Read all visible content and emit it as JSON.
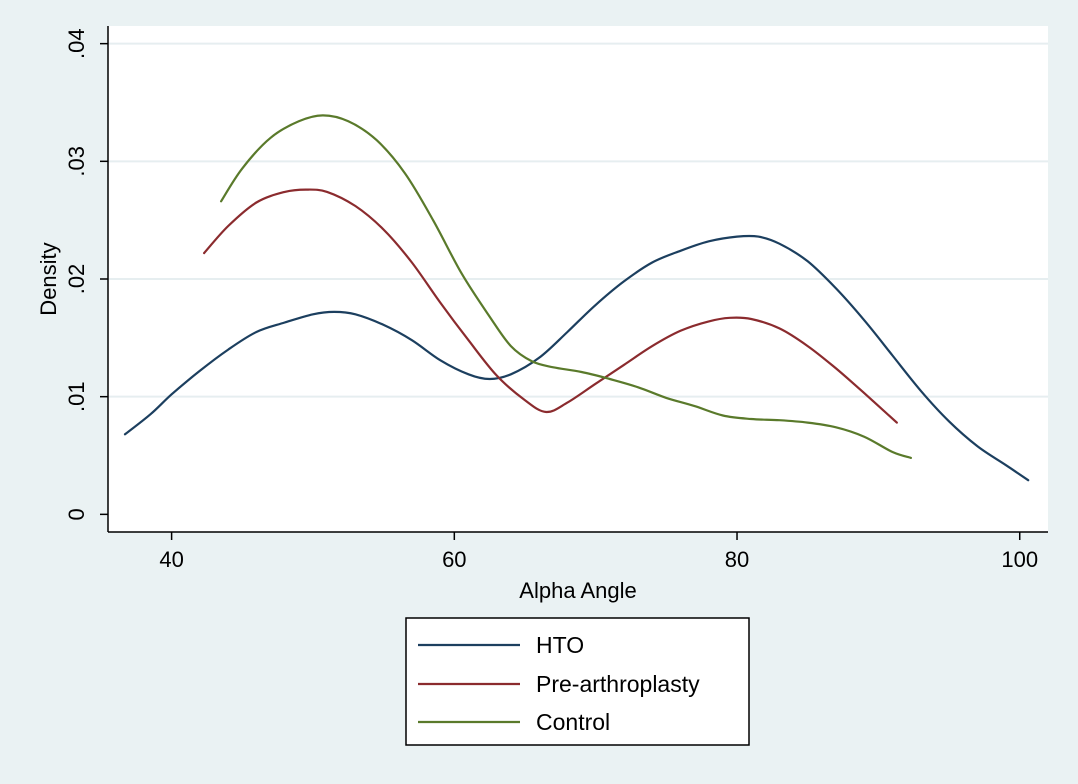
{
  "chart_data": {
    "type": "line",
    "title": "",
    "xlabel": "Alpha Angle",
    "ylabel": "Density",
    "xlim": [
      35.5,
      102
    ],
    "ylim": [
      -0.0015,
      0.0415
    ],
    "x_ticks": [
      40,
      60,
      80,
      100
    ],
    "y_ticks": [
      0,
      0.01,
      0.02,
      0.03,
      0.04
    ],
    "x_tick_labels": [
      "40",
      "60",
      "80",
      "100"
    ],
    "y_tick_labels": [
      "0",
      ".01",
      ".02",
      ".03",
      ".04"
    ],
    "grid": "horizontal",
    "legend_position": "bottom",
    "background": "#eaf2f3",
    "plot_background": "#ffffff",
    "series": [
      {
        "name": "HTO",
        "color": "#1c3f5f",
        "points": [
          [
            36.7,
            0.0068
          ],
          [
            38.5,
            0.0085
          ],
          [
            40.0,
            0.0102
          ],
          [
            42.0,
            0.0122
          ],
          [
            44.0,
            0.014
          ],
          [
            46.0,
            0.0155
          ],
          [
            48.0,
            0.0163
          ],
          [
            50.0,
            0.017
          ],
          [
            51.5,
            0.0172
          ],
          [
            53.0,
            0.017
          ],
          [
            55.0,
            0.0161
          ],
          [
            57.0,
            0.0148
          ],
          [
            59.0,
            0.0131
          ],
          [
            61.0,
            0.0119
          ],
          [
            62.5,
            0.0115
          ],
          [
            64.0,
            0.0119
          ],
          [
            66.0,
            0.0133
          ],
          [
            68.0,
            0.0155
          ],
          [
            70.0,
            0.0178
          ],
          [
            72.0,
            0.0198
          ],
          [
            74.0,
            0.0214
          ],
          [
            76.0,
            0.0224
          ],
          [
            78.0,
            0.0232
          ],
          [
            80.0,
            0.0236
          ],
          [
            81.5,
            0.0236
          ],
          [
            83.0,
            0.023
          ],
          [
            85.0,
            0.0215
          ],
          [
            87.0,
            0.0192
          ],
          [
            89.0,
            0.0165
          ],
          [
            91.0,
            0.0135
          ],
          [
            93.0,
            0.0105
          ],
          [
            95.0,
            0.0079
          ],
          [
            97.0,
            0.0058
          ],
          [
            99.0,
            0.0042
          ],
          [
            100.6,
            0.0029
          ]
        ]
      },
      {
        "name": "Pre-arthroplasty",
        "color": "#8b2b2e",
        "points": [
          [
            42.3,
            0.0222
          ],
          [
            44.0,
            0.0245
          ],
          [
            46.0,
            0.0265
          ],
          [
            48.0,
            0.0274
          ],
          [
            49.5,
            0.0276
          ],
          [
            51.0,
            0.0274
          ],
          [
            53.0,
            0.0262
          ],
          [
            55.0,
            0.0242
          ],
          [
            57.0,
            0.0214
          ],
          [
            59.0,
            0.018
          ],
          [
            61.0,
            0.0148
          ],
          [
            63.0,
            0.0118
          ],
          [
            65.0,
            0.0097
          ],
          [
            66.5,
            0.0087
          ],
          [
            68.0,
            0.0095
          ],
          [
            70.0,
            0.0111
          ],
          [
            72.0,
            0.0127
          ],
          [
            74.0,
            0.0143
          ],
          [
            76.0,
            0.0156
          ],
          [
            78.0,
            0.0164
          ],
          [
            79.5,
            0.0167
          ],
          [
            81.0,
            0.0166
          ],
          [
            83.0,
            0.0158
          ],
          [
            85.0,
            0.0143
          ],
          [
            87.0,
            0.0124
          ],
          [
            89.0,
            0.0103
          ],
          [
            91.3,
            0.0078
          ]
        ]
      },
      {
        "name": "Control",
        "color": "#5a7a2b",
        "points": [
          [
            43.5,
            0.0266
          ],
          [
            45.0,
            0.0294
          ],
          [
            47.0,
            0.032
          ],
          [
            49.0,
            0.0334
          ],
          [
            50.7,
            0.0339
          ],
          [
            52.5,
            0.0334
          ],
          [
            54.5,
            0.0318
          ],
          [
            56.5,
            0.029
          ],
          [
            58.5,
            0.025
          ],
          [
            60.5,
            0.0205
          ],
          [
            62.5,
            0.0168
          ],
          [
            64.0,
            0.0143
          ],
          [
            65.5,
            0.013
          ],
          [
            67.0,
            0.0125
          ],
          [
            69.0,
            0.0121
          ],
          [
            71.0,
            0.0115
          ],
          [
            73.0,
            0.0108
          ],
          [
            75.0,
            0.0099
          ],
          [
            77.0,
            0.0092
          ],
          [
            79.0,
            0.0084
          ],
          [
            81.0,
            0.0081
          ],
          [
            83.0,
            0.008
          ],
          [
            85.0,
            0.0078
          ],
          [
            87.0,
            0.0074
          ],
          [
            89.0,
            0.0066
          ],
          [
            91.0,
            0.0053
          ],
          [
            92.3,
            0.0048
          ]
        ]
      }
    ]
  }
}
